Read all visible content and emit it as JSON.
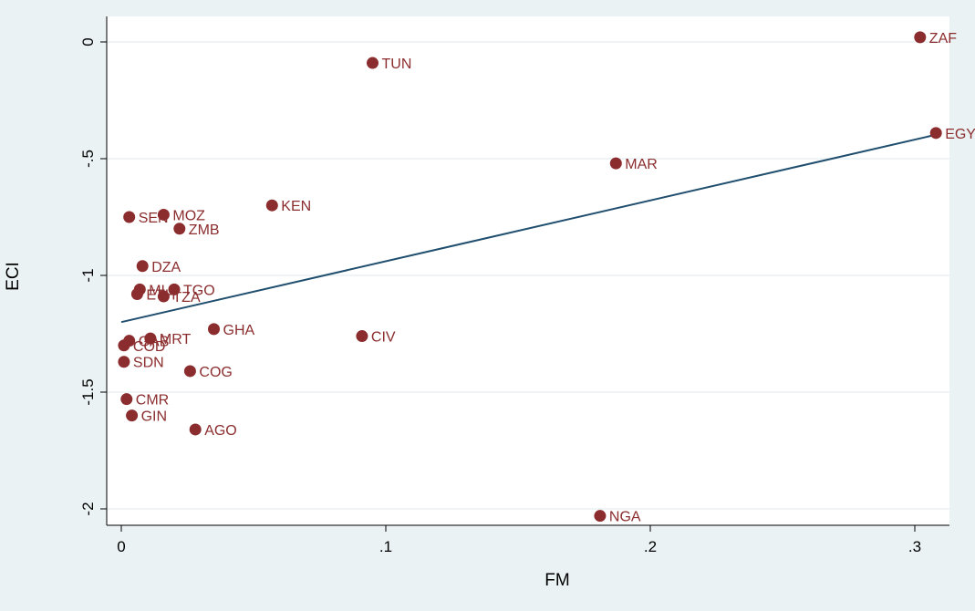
{
  "chart_data": {
    "type": "scatter",
    "xlabel": "FM",
    "ylabel": "ECI",
    "xlim": [
      0,
      0.31
    ],
    "ylim": [
      -2.05,
      0.05
    ],
    "x_ticks": [
      {
        "value": 0,
        "label": "0"
      },
      {
        "value": 0.1,
        "label": ".1"
      },
      {
        "value": 0.2,
        "label": ".2"
      },
      {
        "value": 0.3,
        "label": ".3"
      }
    ],
    "y_ticks": [
      {
        "value": 0,
        "label": "0"
      },
      {
        "value": -0.5,
        "label": "-.5"
      },
      {
        "value": -1,
        "label": "-1"
      },
      {
        "value": -1.5,
        "label": "-1.5"
      },
      {
        "value": -2,
        "label": "-2"
      }
    ],
    "grid": "horizontal",
    "marker_color": "#8b2d2e",
    "line_color": "#1f4e6e",
    "points": [
      {
        "label": "ZAF",
        "x": 0.302,
        "y": 0.02
      },
      {
        "label": "EGY",
        "x": 0.308,
        "y": -0.39
      },
      {
        "label": "TUN",
        "x": 0.095,
        "y": -0.09
      },
      {
        "label": "MAR",
        "x": 0.187,
        "y": -0.52
      },
      {
        "label": "KEN",
        "x": 0.057,
        "y": -0.7
      },
      {
        "label": "SEN",
        "x": 0.003,
        "y": -0.75
      },
      {
        "label": "MOZ",
        "x": 0.016,
        "y": -0.74
      },
      {
        "label": "ZMB",
        "x": 0.022,
        "y": -0.8
      },
      {
        "label": "DZA",
        "x": 0.008,
        "y": -0.96
      },
      {
        "label": "MLI",
        "x": 0.007,
        "y": -1.06
      },
      {
        "label": "TGO",
        "x": 0.02,
        "y": -1.06
      },
      {
        "label": "ETH",
        "x": 0.006,
        "y": -1.08
      },
      {
        "label": "TZA",
        "x": 0.016,
        "y": -1.09
      },
      {
        "label": "GHA",
        "x": 0.035,
        "y": -1.23
      },
      {
        "label": "CIV",
        "x": 0.091,
        "y": -1.26
      },
      {
        "label": "GAB",
        "x": 0.003,
        "y": -1.28
      },
      {
        "label": "MRT",
        "x": 0.011,
        "y": -1.27
      },
      {
        "label": "COD",
        "x": 0.001,
        "y": -1.3
      },
      {
        "label": "SDN",
        "x": 0.001,
        "y": -1.37
      },
      {
        "label": "COG",
        "x": 0.026,
        "y": -1.41
      },
      {
        "label": "CMR",
        "x": 0.002,
        "y": -1.53
      },
      {
        "label": "GIN",
        "x": 0.004,
        "y": -1.6
      },
      {
        "label": "AGO",
        "x": 0.028,
        "y": -1.66
      },
      {
        "label": "NGA",
        "x": 0.181,
        "y": -2.03
      }
    ],
    "fit_line": {
      "x": [
        0,
        0.307
      ],
      "y": [
        -1.2,
        -0.4
      ]
    }
  }
}
